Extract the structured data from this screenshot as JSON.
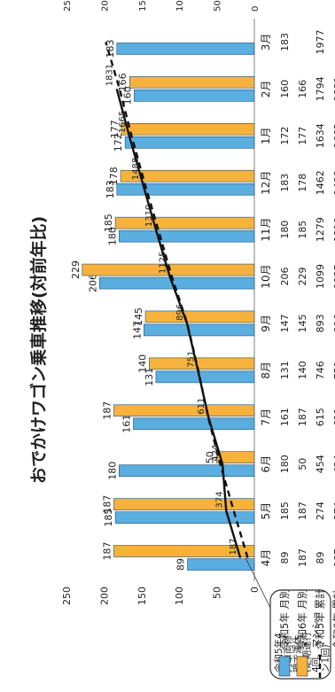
{
  "chart_data": {
    "type": "bar",
    "title": "おでかけワゴン乗車推移(対前年比)",
    "categories": [
      "4月",
      "5月",
      "6月",
      "7月",
      "8月",
      "9月",
      "10月",
      "11月",
      "12月",
      "1月",
      "2月",
      "3月"
    ],
    "series": [
      {
        "name": "令和5年 月別",
        "kind": "bar",
        "axis": "left",
        "color": "#5aaee0",
        "values": [
          89,
          185,
          180,
          161,
          131,
          147,
          206,
          180,
          183,
          172,
          160,
          183
        ]
      },
      {
        "name": "令和6年 月別",
        "kind": "bar",
        "axis": "left",
        "color": "#f6b23c",
        "values": [
          187,
          187,
          50,
          187,
          140,
          145,
          229,
          185,
          178,
          177,
          166,
          null
        ]
      },
      {
        "name": "令和5年 累計",
        "kind": "line",
        "axis": "right",
        "color": "#111111",
        "dash": true,
        "values": [
          89,
          274,
          454,
          615,
          746,
          893,
          1099,
          1279,
          1462,
          1634,
          1794,
          1977
        ]
      },
      {
        "name": "令和6年 累計",
        "kind": "line",
        "axis": "right",
        "color": "#111111",
        "dash": false,
        "values": [
          187,
          374,
          424,
          611,
          751,
          896,
          1125,
          1310,
          1488,
          1665,
          1831,
          null
        ]
      }
    ],
    "y_left": {
      "min": 0,
      "max": 250,
      "ticks": [
        0,
        50,
        100,
        150,
        200,
        250
      ]
    },
    "y_right": {
      "min": 0,
      "max": 2500,
      "ticks": [
        0,
        500,
        1000,
        1500,
        2000,
        2500
      ]
    },
    "annotation": [
      "令和5年4",
      "月車両修",
      "理で運休",
      "(定期運行",
      "4回、マンショ",
      "ン1回)"
    ],
    "table": {
      "rows": [
        {
          "label": "令和5年 月別",
          "values": [
            "89",
            "185",
            "180",
            "161",
            "131",
            "147",
            "206",
            "180",
            "183",
            "172",
            "160",
            "183"
          ]
        },
        {
          "label": "令和6年 月別",
          "values": [
            "187",
            "187",
            "50",
            "187",
            "140",
            "145",
            "229",
            "185",
            "178",
            "177",
            "166",
            ""
          ]
        },
        {
          "label": "令和5年 累計",
          "values": [
            "89",
            "274",
            "454",
            "615",
            "746",
            "893",
            "1099",
            "1279",
            "1462",
            "1634",
            "1794",
            "1977"
          ]
        },
        {
          "label": "令和6年 累計",
          "values": [
            "187",
            "374",
            "424",
            "611",
            "751",
            "896",
            "1125",
            "1310",
            "1488",
            "1665",
            "1831",
            ""
          ]
        }
      ]
    },
    "rotation": "counter-clockwise 90°",
    "grid": false,
    "legend": "left, inside table rows"
  }
}
